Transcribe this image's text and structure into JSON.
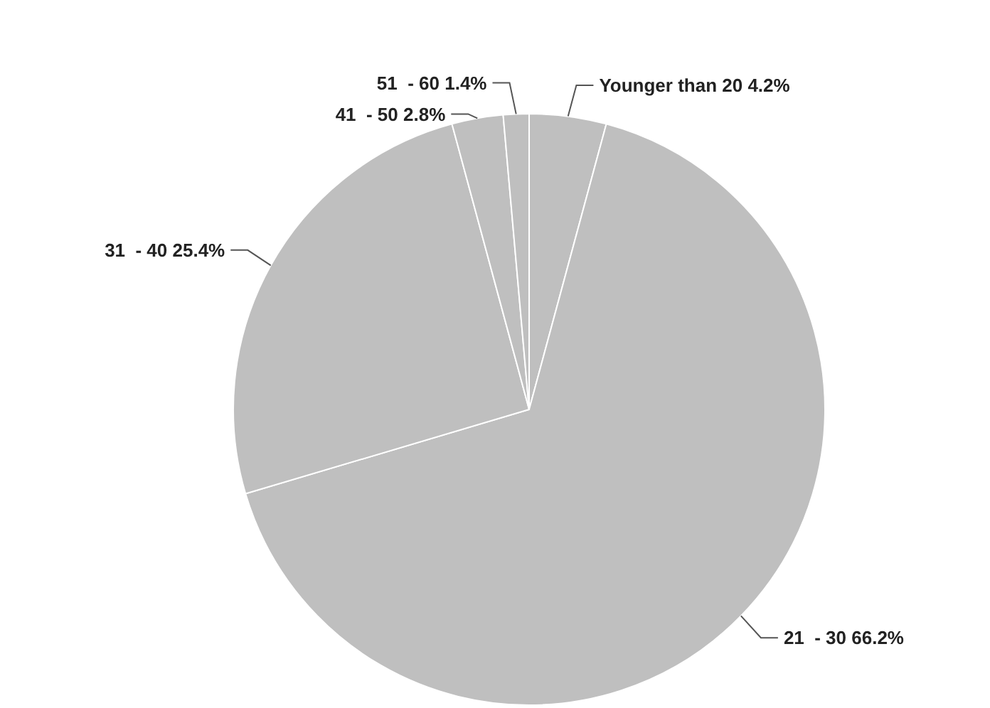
{
  "chart_data": {
    "type": "pie",
    "categories": [
      "Younger than 20",
      "21  - 30",
      "31  - 40",
      "41  - 50",
      "51  - 60"
    ],
    "values": [
      4.2,
      66.2,
      25.4,
      2.8,
      1.4
    ],
    "value_labels": [
      "4.2%",
      "66.2%",
      "25.4%",
      "2.8%",
      "1.4%"
    ],
    "colors": [
      "#bfbfbf",
      "#bfbfbf",
      "#bfbfbf",
      "#bfbfbf",
      "#bfbfbf"
    ],
    "legend": false
  }
}
